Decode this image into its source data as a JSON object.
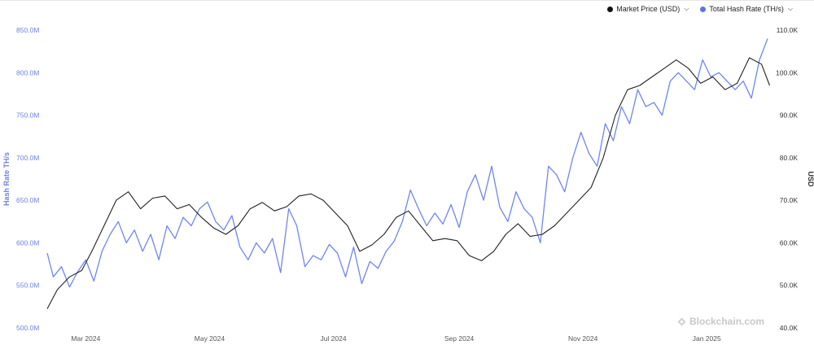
{
  "legend": {
    "items": [
      {
        "label": "Market Price (USD)",
        "color": "#111111"
      },
      {
        "label": "Total Hash Rate (TH/s)",
        "color": "#5b73e8"
      }
    ],
    "caret_icon": "chevron-down-icon"
  },
  "watermark": {
    "text": "Blockchain.com",
    "icon": "blockchain-logo-icon"
  },
  "colors": {
    "hash": "#6f86f0",
    "price": "#222222",
    "left_axis": "#6a82e8",
    "right_axis": "#333333",
    "tick": "#555555"
  },
  "chart_data": {
    "type": "line",
    "title": "",
    "xlabel": "",
    "x_tick_labels": [
      "Mar 2024",
      "May 2024",
      "Jul 2024",
      "Sep 2024",
      "Nov 2024",
      "Jan 2025"
    ],
    "x_tick_dates": [
      "2024-03-01",
      "2024-05-01",
      "2024-07-01",
      "2024-09-01",
      "2024-11-01",
      "2025-01-01"
    ],
    "xlim": [
      "2024-02-11",
      "2025-02-02"
    ],
    "y_left": {
      "label": "Hash Rate TH/s",
      "ylim": [
        500,
        850
      ],
      "unit": "M",
      "ticks": [
        "500.0M",
        "550.0M",
        "600.0M",
        "650.0M",
        "700.0M",
        "750.0M",
        "800.0M",
        "850.0M"
      ]
    },
    "y_right": {
      "label": "USD",
      "ylim": [
        40,
        110
      ],
      "unit": "K",
      "ticks": [
        "40.0K",
        "50.0K",
        "60.0K",
        "70.0K",
        "80.0K",
        "90.0K",
        "100.0K",
        "110.0K"
      ]
    },
    "series": [
      {
        "name": "Total Hash Rate (TH/s)",
        "axis": "left",
        "unit": "M TH/s",
        "x": [
          "2024-02-11",
          "2024-02-14",
          "2024-02-18",
          "2024-02-22",
          "2024-02-26",
          "2024-03-01",
          "2024-03-05",
          "2024-03-09",
          "2024-03-13",
          "2024-03-17",
          "2024-03-21",
          "2024-03-25",
          "2024-03-29",
          "2024-04-02",
          "2024-04-06",
          "2024-04-10",
          "2024-04-14",
          "2024-04-18",
          "2024-04-22",
          "2024-04-26",
          "2024-04-30",
          "2024-05-04",
          "2024-05-08",
          "2024-05-12",
          "2024-05-16",
          "2024-05-20",
          "2024-05-24",
          "2024-05-28",
          "2024-06-01",
          "2024-06-05",
          "2024-06-09",
          "2024-06-13",
          "2024-06-17",
          "2024-06-21",
          "2024-06-25",
          "2024-06-29",
          "2024-07-03",
          "2024-07-07",
          "2024-07-11",
          "2024-07-15",
          "2024-07-19",
          "2024-07-23",
          "2024-07-27",
          "2024-07-31",
          "2024-08-04",
          "2024-08-08",
          "2024-08-12",
          "2024-08-16",
          "2024-08-20",
          "2024-08-24",
          "2024-08-28",
          "2024-09-01",
          "2024-09-05",
          "2024-09-09",
          "2024-09-13",
          "2024-09-17",
          "2024-09-21",
          "2024-09-25",
          "2024-09-29",
          "2024-10-03",
          "2024-10-07",
          "2024-10-11",
          "2024-10-15",
          "2024-10-19",
          "2024-10-23",
          "2024-10-27",
          "2024-10-31",
          "2024-11-04",
          "2024-11-08",
          "2024-11-12",
          "2024-11-16",
          "2024-11-20",
          "2024-11-24",
          "2024-11-28",
          "2024-12-02",
          "2024-12-06",
          "2024-12-10",
          "2024-12-14",
          "2024-12-18",
          "2024-12-22",
          "2024-12-26",
          "2024-12-30",
          "2025-01-03",
          "2025-01-07",
          "2025-01-11",
          "2025-01-15",
          "2025-01-19",
          "2025-01-23",
          "2025-01-27",
          "2025-01-31"
        ],
        "values": [
          588,
          560,
          572,
          548,
          566,
          580,
          555,
          590,
          610,
          625,
          600,
          615,
          590,
          610,
          580,
          620,
          605,
          630,
          620,
          640,
          648,
          625,
          615,
          632,
          595,
          580,
          600,
          588,
          605,
          565,
          640,
          620,
          572,
          585,
          580,
          598,
          588,
          560,
          595,
          552,
          578,
          570,
          590,
          602,
          625,
          662,
          640,
          620,
          635,
          622,
          645,
          618,
          660,
          680,
          650,
          690,
          642,
          625,
          660,
          640,
          630,
          600,
          690,
          680,
          660,
          700,
          730,
          705,
          690,
          740,
          720,
          760,
          740,
          780,
          760,
          765,
          750,
          790,
          800,
          790,
          780,
          815,
          795,
          800,
          790,
          780,
          790,
          770,
          815,
          840
        ]
      },
      {
        "name": "Market Price (USD)",
        "axis": "right",
        "unit": "K USD",
        "x": [
          "2024-02-11",
          "2024-02-16",
          "2024-02-22",
          "2024-02-28",
          "2024-03-04",
          "2024-03-10",
          "2024-03-16",
          "2024-03-22",
          "2024-03-28",
          "2024-04-03",
          "2024-04-09",
          "2024-04-15",
          "2024-04-21",
          "2024-04-27",
          "2024-05-03",
          "2024-05-09",
          "2024-05-15",
          "2024-05-21",
          "2024-05-27",
          "2024-06-02",
          "2024-06-08",
          "2024-06-14",
          "2024-06-20",
          "2024-06-26",
          "2024-07-02",
          "2024-07-08",
          "2024-07-14",
          "2024-07-20",
          "2024-07-26",
          "2024-08-01",
          "2024-08-07",
          "2024-08-13",
          "2024-08-19",
          "2024-08-25",
          "2024-08-31",
          "2024-09-06",
          "2024-09-12",
          "2024-09-18",
          "2024-09-24",
          "2024-09-30",
          "2024-10-06",
          "2024-10-12",
          "2024-10-18",
          "2024-10-24",
          "2024-10-30",
          "2024-11-05",
          "2024-11-11",
          "2024-11-17",
          "2024-11-23",
          "2024-11-29",
          "2024-12-05",
          "2024-12-11",
          "2024-12-17",
          "2024-12-23",
          "2024-12-29",
          "2025-01-04",
          "2025-01-10",
          "2025-01-16",
          "2025-01-22",
          "2025-01-28",
          "2025-02-01"
        ],
        "values": [
          44.5,
          49,
          52,
          53.5,
          58,
          64,
          70,
          72,
          68,
          70.5,
          71,
          68,
          69,
          66,
          63.5,
          62,
          64,
          68,
          69.5,
          67.5,
          68.5,
          71,
          71.5,
          70,
          67,
          64,
          58,
          59.5,
          62,
          66,
          67.5,
          64,
          60.5,
          61,
          60.5,
          57,
          55.8,
          58,
          62,
          64.5,
          61.5,
          62,
          64,
          67,
          70,
          73,
          80,
          90,
          96,
          97,
          99,
          101,
          103,
          101,
          97.5,
          99,
          96,
          97.5,
          103.5,
          102,
          97
        ]
      }
    ],
    "grid": false,
    "legend_position": "top-right"
  }
}
